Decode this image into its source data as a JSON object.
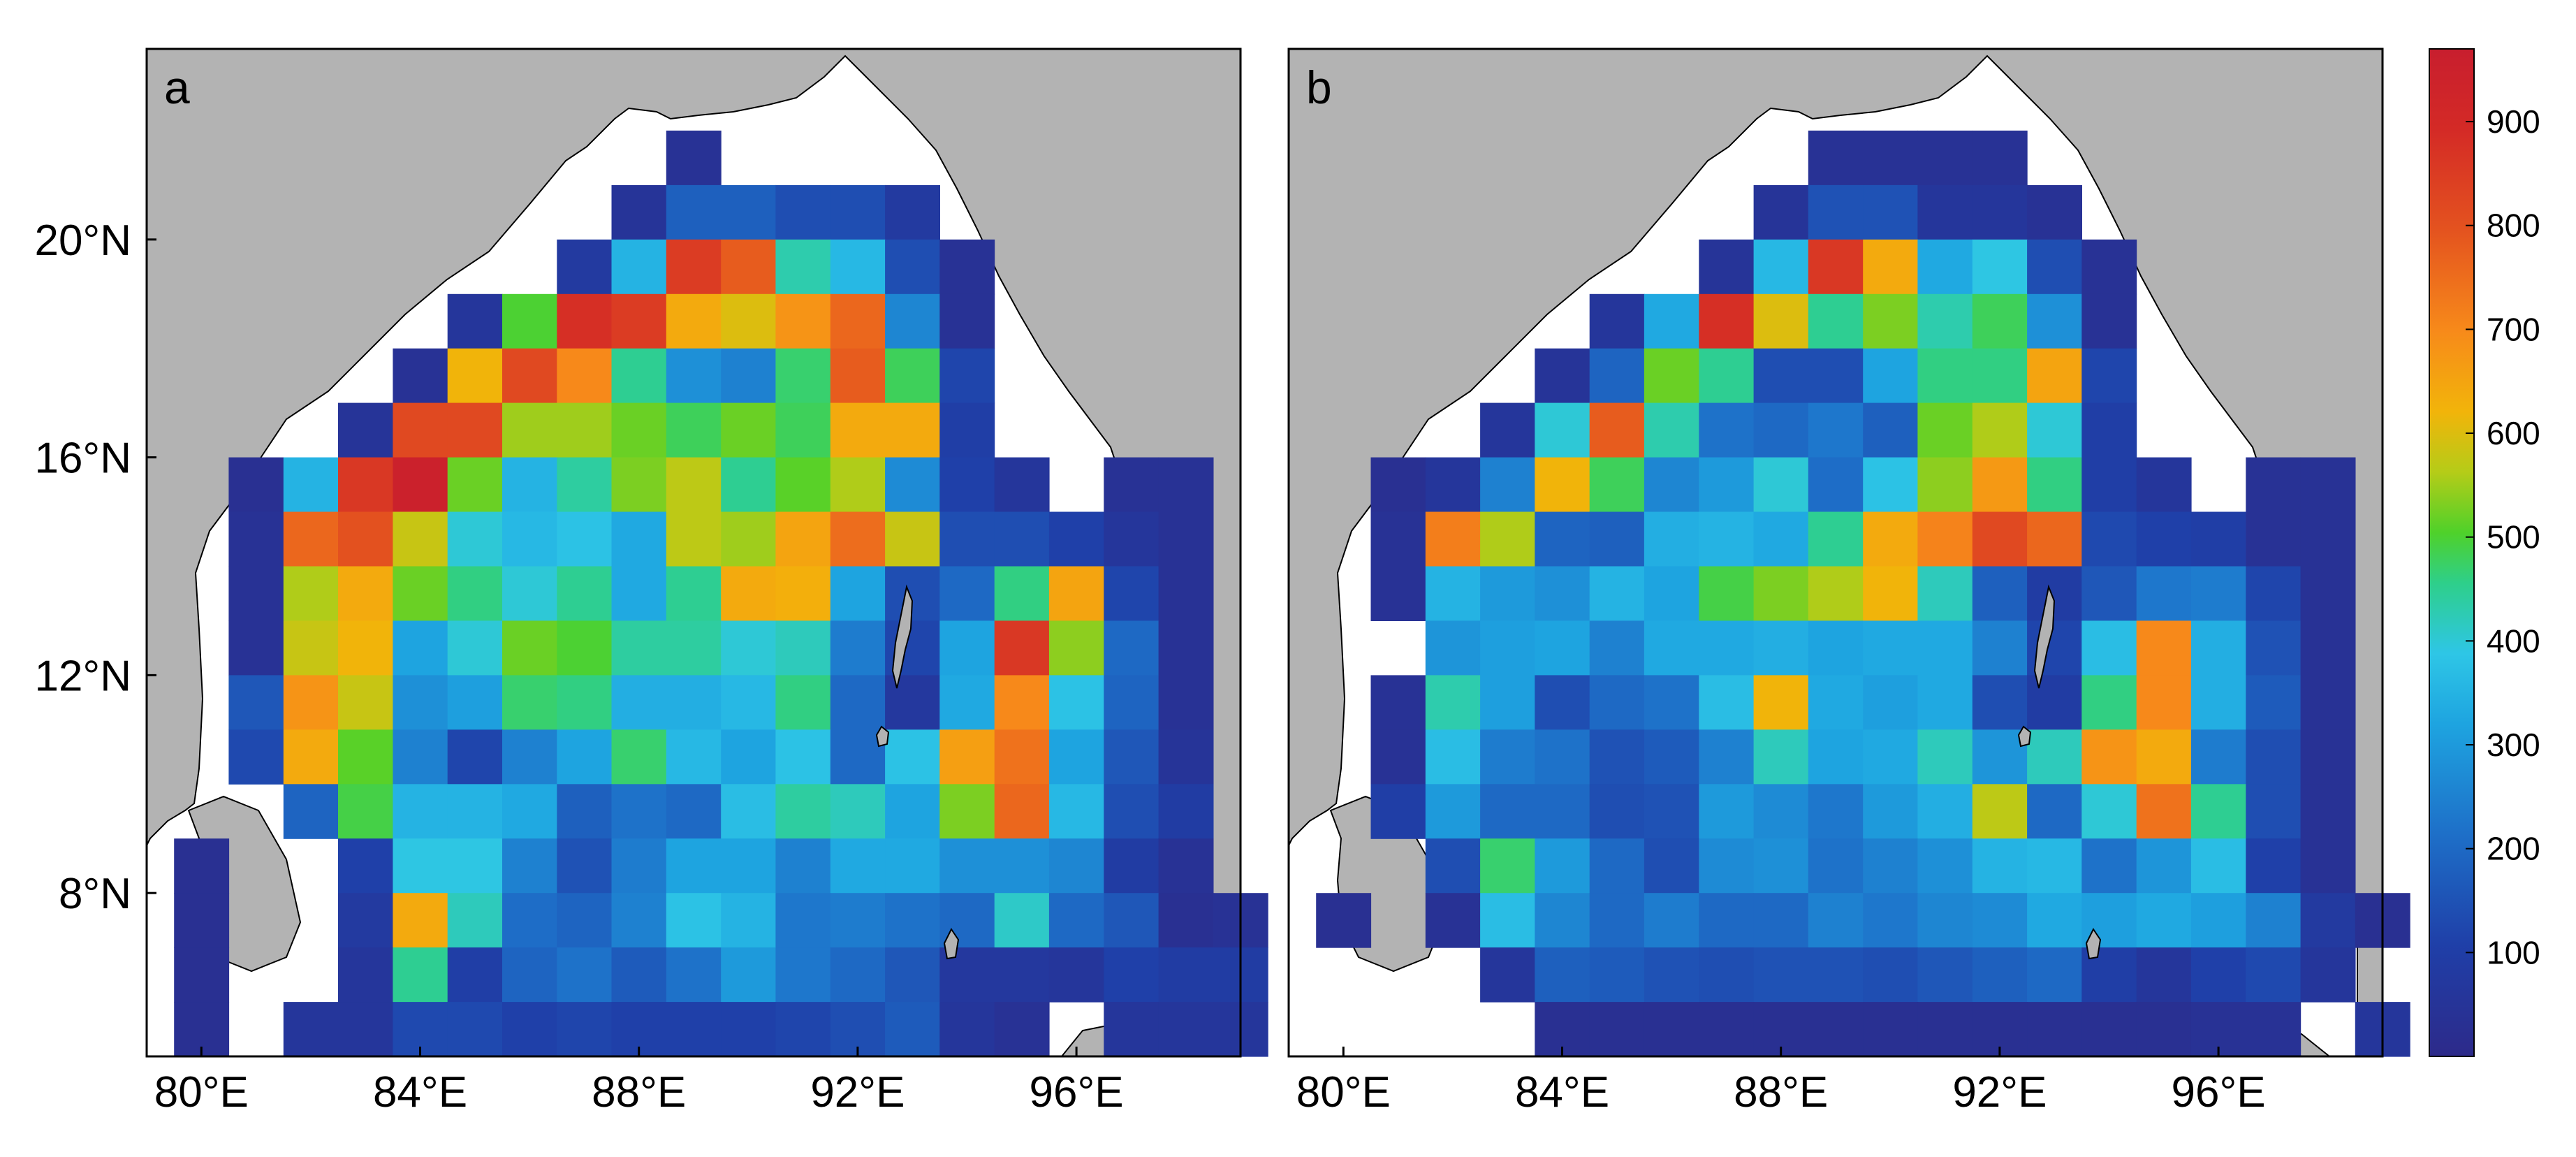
{
  "chart_data": [
    {
      "type": "heatmap",
      "panel_label": "a",
      "x_ticks": [
        "80°E",
        "84°E",
        "88°E",
        "92°E",
        "96°E"
      ],
      "y_ticks": [
        "20°N",
        "16°N",
        "12°N",
        "8°N"
      ],
      "x_tick_values": [
        80,
        84,
        88,
        92,
        96
      ],
      "y_tick_values": [
        20,
        16,
        12,
        8
      ],
      "xlim": [
        79,
        99
      ],
      "ylim": [
        5,
        23.5
      ],
      "cell_size_deg": 1,
      "grid_lon_start": 80,
      "grid_lat_top": 22,
      "land_color": "#b3b3b3",
      "rows": [
        [
          null,
          null,
          null,
          null,
          null,
          null,
          null,
          null,
          null,
          40,
          null,
          null,
          null,
          null,
          null,
          null,
          null,
          null,
          null,
          null
        ],
        [
          null,
          null,
          null,
          null,
          null,
          null,
          null,
          null,
          50,
          180,
          180,
          140,
          140,
          80,
          null,
          null,
          null,
          null,
          null,
          null
        ],
        [
          null,
          null,
          null,
          null,
          null,
          null,
          null,
          80,
          350,
          850,
          780,
          430,
          360,
          140,
          40,
          null,
          null,
          null,
          null,
          null
        ],
        [
          null,
          null,
          null,
          null,
          null,
          60,
          500,
          880,
          850,
          640,
          600,
          680,
          760,
          260,
          40,
          null,
          null,
          null,
          null,
          null
        ],
        [
          null,
          null,
          null,
          null,
          40,
          620,
          820,
          700,
          450,
          280,
          250,
          470,
          780,
          480,
          120,
          null,
          null,
          null,
          null,
          null
        ],
        [
          null,
          null,
          null,
          50,
          820,
          820,
          550,
          550,
          520,
          480,
          520,
          480,
          640,
          640,
          100,
          null,
          null,
          null,
          null,
          null
        ],
        [
          null,
          30,
          350,
          860,
          950,
          520,
          350,
          440,
          530,
          570,
          450,
          510,
          560,
          270,
          110,
          60,
          null,
          40,
          40,
          null
        ],
        [
          null,
          40,
          760,
          800,
          580,
          400,
          360,
          380,
          330,
          570,
          550,
          650,
          750,
          580,
          140,
          140,
          110,
          60,
          40,
          null
        ],
        [
          null,
          40,
          560,
          640,
          520,
          460,
          400,
          450,
          330,
          450,
          640,
          630,
          320,
          140,
          200,
          460,
          650,
          120,
          40,
          null
        ],
        [
          null,
          40,
          580,
          620,
          320,
          400,
          520,
          500,
          440,
          440,
          400,
          420,
          240,
          120,
          320,
          860,
          540,
          200,
          40,
          null
        ],
        [
          null,
          160,
          680,
          580,
          280,
          310,
          470,
          460,
          340,
          340,
          360,
          460,
          200,
          70,
          330,
          700,
          380,
          190,
          40,
          null
        ],
        [
          null,
          130,
          640,
          510,
          250,
          120,
          250,
          320,
          470,
          360,
          320,
          380,
          200,
          380,
          660,
          740,
          320,
          160,
          50,
          null
        ],
        [
          null,
          null,
          190,
          490,
          350,
          350,
          330,
          180,
          220,
          200,
          370,
          440,
          420,
          320,
          530,
          760,
          360,
          140,
          90,
          null
        ],
        [
          30,
          null,
          null,
          110,
          390,
          390,
          250,
          150,
          240,
          320,
          320,
          250,
          330,
          330,
          280,
          280,
          260,
          90,
          40,
          null
        ],
        [
          30,
          null,
          null,
          80,
          640,
          420,
          210,
          190,
          250,
          380,
          350,
          230,
          240,
          220,
          200,
          410,
          200,
          160,
          30,
          40
        ],
        [
          30,
          null,
          null,
          60,
          450,
          100,
          190,
          220,
          170,
          220,
          300,
          230,
          200,
          160,
          70,
          70,
          60,
          110,
          90,
          90
        ],
        [
          30,
          null,
          60,
          60,
          130,
          130,
          110,
          120,
          110,
          110,
          110,
          120,
          140,
          170,
          60,
          40,
          null,
          60,
          60,
          60
        ]
      ]
    },
    {
      "type": "heatmap",
      "panel_label": "b",
      "x_ticks": [
        "80°E",
        "84°E",
        "88°E",
        "92°E",
        "96°E"
      ],
      "x_tick_values": [
        80,
        84,
        88,
        92,
        96
      ],
      "xlim": [
        79,
        99
      ],
      "ylim": [
        5,
        23.5
      ],
      "cell_size_deg": 1,
      "grid_lon_start": 80,
      "grid_lat_top": 22,
      "land_color": "#b3b3b3",
      "rows": [
        [
          null,
          null,
          null,
          null,
          null,
          null,
          null,
          null,
          null,
          40,
          40,
          40,
          40,
          null,
          null,
          null,
          null,
          null,
          null,
          null
        ],
        [
          null,
          null,
          null,
          null,
          null,
          null,
          null,
          null,
          50,
          150,
          150,
          60,
          60,
          40,
          null,
          null,
          null,
          null,
          null,
          null
        ],
        [
          null,
          null,
          null,
          null,
          null,
          null,
          null,
          50,
          360,
          860,
          640,
          330,
          390,
          140,
          40,
          null,
          null,
          null,
          null,
          null
        ],
        [
          null,
          null,
          null,
          null,
          null,
          60,
          330,
          880,
          600,
          450,
          530,
          430,
          480,
          280,
          40,
          null,
          null,
          null,
          null,
          null
        ],
        [
          null,
          null,
          null,
          null,
          50,
          190,
          520,
          450,
          140,
          140,
          320,
          460,
          460,
          650,
          120,
          null,
          null,
          null,
          null,
          null
        ],
        [
          null,
          null,
          null,
          60,
          400,
          780,
          430,
          220,
          200,
          230,
          180,
          520,
          560,
          400,
          100,
          null,
          null,
          null,
          null,
          null
        ],
        [
          null,
          30,
          60,
          250,
          620,
          480,
          260,
          300,
          400,
          210,
          380,
          540,
          670,
          460,
          100,
          60,
          null,
          40,
          40,
          null
        ],
        [
          null,
          40,
          720,
          560,
          190,
          180,
          340,
          350,
          330,
          450,
          640,
          710,
          820,
          760,
          130,
          110,
          100,
          40,
          40,
          null
        ],
        [
          null,
          40,
          350,
          300,
          280,
          350,
          320,
          490,
          530,
          560,
          620,
          420,
          180,
          90,
          160,
          230,
          240,
          120,
          40,
          null
        ],
        [
          null,
          null,
          290,
          310,
          320,
          250,
          330,
          330,
          340,
          320,
          330,
          330,
          250,
          120,
          370,
          700,
          340,
          150,
          40,
          null
        ],
        [
          null,
          40,
          430,
          310,
          140,
          200,
          220,
          370,
          620,
          330,
          310,
          330,
          140,
          90,
          460,
          700,
          340,
          170,
          40,
          null
        ],
        [
          null,
          40,
          370,
          240,
          220,
          150,
          170,
          250,
          420,
          320,
          330,
          420,
          290,
          420,
          680,
          640,
          240,
          140,
          40,
          null
        ],
        [
          null,
          100,
          300,
          200,
          200,
          140,
          150,
          300,
          270,
          230,
          300,
          340,
          570,
          200,
          400,
          740,
          450,
          140,
          40,
          null
        ],
        [
          null,
          null,
          140,
          470,
          300,
          200,
          140,
          270,
          280,
          220,
          250,
          280,
          350,
          360,
          220,
          290,
          370,
          110,
          40,
          null
        ],
        [
          30,
          null,
          40,
          370,
          260,
          200,
          240,
          200,
          200,
          250,
          230,
          260,
          270,
          330,
          310,
          330,
          310,
          250,
          80,
          30
        ],
        [
          null,
          null,
          null,
          60,
          180,
          170,
          150,
          140,
          150,
          150,
          140,
          160,
          180,
          200,
          100,
          60,
          110,
          130,
          60,
          null
        ],
        [
          null,
          null,
          null,
          null,
          30,
          30,
          30,
          30,
          30,
          30,
          30,
          30,
          30,
          30,
          30,
          30,
          40,
          40,
          null,
          60
        ]
      ]
    }
  ],
  "colorbar": {
    "ticks": [
      "100",
      "200",
      "300",
      "400",
      "500",
      "600",
      "700",
      "800",
      "900"
    ],
    "tick_values": [
      100,
      200,
      300,
      400,
      500,
      600,
      700,
      800,
      900
    ],
    "range": [
      0,
      970
    ],
    "colormap": "jet",
    "stops": [
      "#352a87",
      "#0363e1",
      "#1485d4",
      "#06a7c6",
      "#38b99e",
      "#92bf73",
      "#d9ba56",
      "#fcce2e",
      "#f9fb0e"
    ]
  }
}
